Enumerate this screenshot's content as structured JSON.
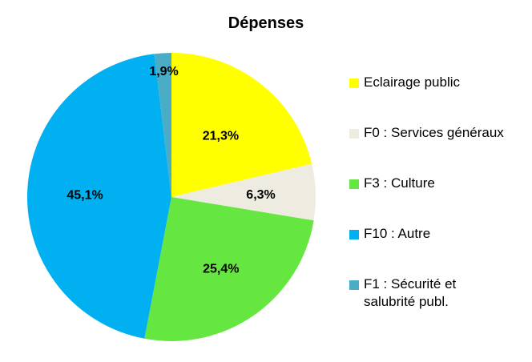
{
  "chart_data": {
    "type": "pie",
    "title": "Dépenses",
    "slices": [
      {
        "name": "Eclairage public",
        "value": 21.3,
        "label": "21,3%",
        "color": "#FFFF00"
      },
      {
        "name": "F0 : Services généraux",
        "value": 6.3,
        "label": "6,3%",
        "color": "#EEECE1"
      },
      {
        "name": "F3 : Culture",
        "value": 25.4,
        "label": "25,4%",
        "color": "#66E640"
      },
      {
        "name": "F10 : Autre",
        "value": 45.1,
        "label": "45,1%",
        "color": "#00B0F0"
      },
      {
        "name": "F1 : Sécurité et\nsalubrité publ.",
        "value": 1.9,
        "label": "1,9%",
        "color": "#4BACC6"
      }
    ],
    "legend_position": "right"
  }
}
